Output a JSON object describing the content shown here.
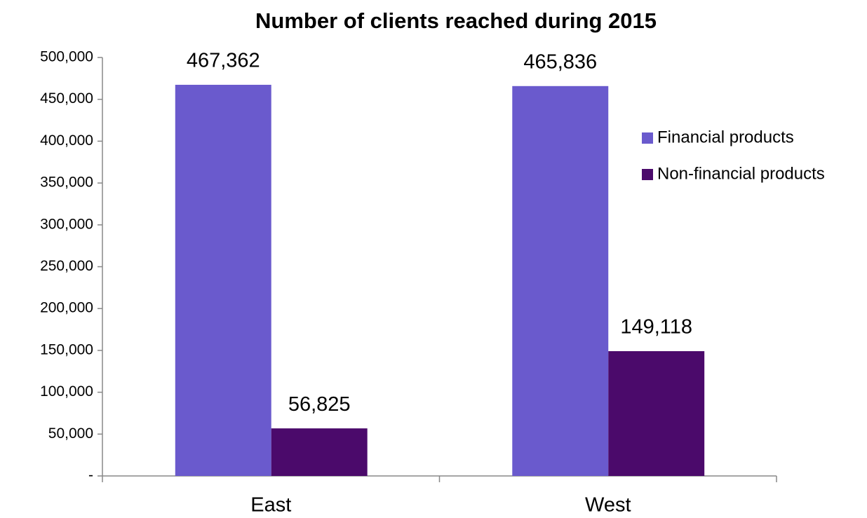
{
  "chart_data": {
    "type": "bar",
    "title": "Number of clients reached during 2015",
    "categories": [
      "East",
      "West"
    ],
    "series": [
      {
        "name": "Financial products",
        "color": "#6a5acd",
        "values": [
          467362,
          465836
        ],
        "value_labels": [
          "467,362",
          "465,836"
        ]
      },
      {
        "name": "Non-financial products",
        "color": "#4b0a6b",
        "values": [
          56825,
          149118
        ],
        "value_labels": [
          "56,825",
          "149,118"
        ]
      }
    ],
    "ylim": [
      0,
      500000
    ],
    "yticks": [
      {
        "value": 0,
        "label": "-"
      },
      {
        "value": 50000,
        "label": "50,000"
      },
      {
        "value": 100000,
        "label": "100,000"
      },
      {
        "value": 150000,
        "label": "150,000"
      },
      {
        "value": 200000,
        "label": "200,000"
      },
      {
        "value": 250000,
        "label": "250,000"
      },
      {
        "value": 300000,
        "label": "300,000"
      },
      {
        "value": 350000,
        "label": "350,000"
      },
      {
        "value": 400000,
        "label": "400,000"
      },
      {
        "value": 450000,
        "label": "450,000"
      },
      {
        "value": 500000,
        "label": "500,000"
      }
    ],
    "grid": false,
    "legend": "right"
  }
}
